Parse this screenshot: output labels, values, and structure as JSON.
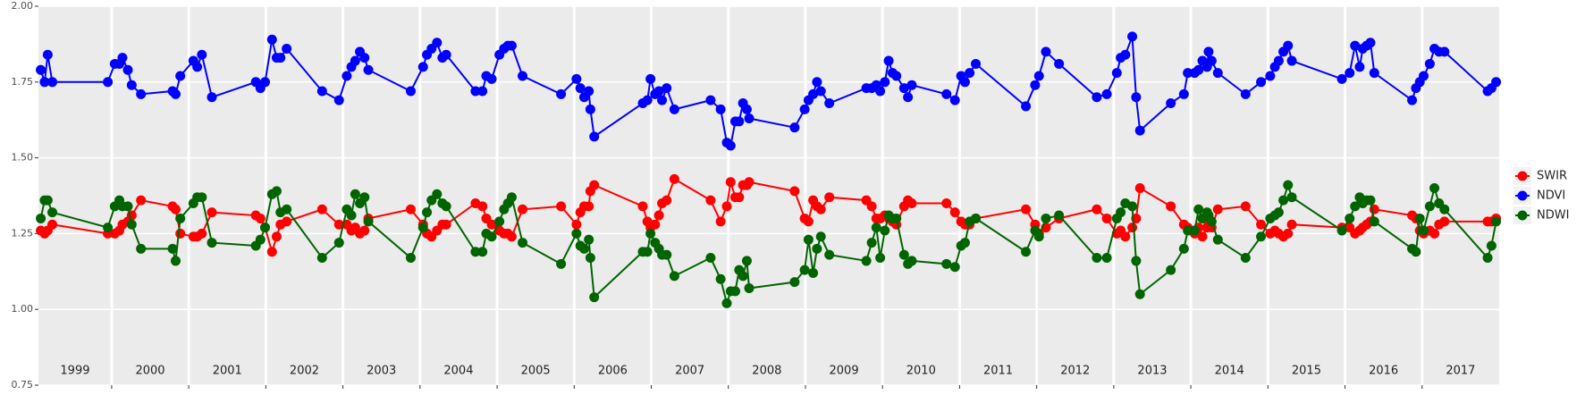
{
  "chart_data": {
    "type": "line",
    "x": [
      1999.08,
      1999.13,
      1999.17,
      1999.23,
      1999.95,
      2000.04,
      2000.1,
      2000.14,
      2000.21,
      2000.26,
      2000.38,
      2000.79,
      2000.83,
      2000.89,
      2001.06,
      2001.11,
      2001.17,
      2001.3,
      2001.87,
      2001.93,
      2001.99,
      2002.08,
      2002.14,
      2002.19,
      2002.27,
      2002.73,
      2002.95,
      2003.05,
      2003.11,
      2003.16,
      2003.22,
      2003.28,
      2003.33,
      2003.88,
      2004.04,
      2004.09,
      2004.15,
      2004.22,
      2004.29,
      2004.34,
      2004.72,
      2004.81,
      2004.86,
      2004.93,
      2005.03,
      2005.09,
      2005.14,
      2005.19,
      2005.33,
      2005.83,
      2006.03,
      2006.08,
      2006.13,
      2006.19,
      2006.21,
      2006.26,
      2006.89,
      2006.95,
      2006.99,
      2007.05,
      2007.1,
      2007.14,
      2007.2,
      2007.3,
      2007.77,
      2007.9,
      2007.98,
      2008.03,
      2008.09,
      2008.14,
      2008.19,
      2008.24,
      2008.27,
      2008.86,
      2008.99,
      2009.04,
      2009.1,
      2009.15,
      2009.2,
      2009.31,
      2009.79,
      2009.86,
      2009.92,
      2009.97,
      2010.03,
      2010.08,
      2010.13,
      2010.18,
      2010.28,
      2010.33,
      2010.38,
      2010.83,
      2010.94,
      2011.02,
      2011.07,
      2011.13,
      2011.21,
      2011.86,
      2011.98,
      2012.03,
      2012.12,
      2012.29,
      2012.78,
      2012.91,
      2013.04,
      2013.09,
      2013.15,
      2013.24,
      2013.29,
      2013.34,
      2013.74,
      2013.91,
      2013.96,
      2014.05,
      2014.1,
      2014.15,
      2014.21,
      2014.23,
      2014.27,
      2014.35,
      2014.71,
      2014.91,
      2015.03,
      2015.09,
      2015.14,
      2015.2,
      2015.26,
      2015.31,
      2015.96,
      2016.06,
      2016.13,
      2016.19,
      2016.23,
      2016.28,
      2016.33,
      2016.38,
      2016.87,
      2016.92,
      2016.97,
      2017.02,
      2017.1,
      2017.16,
      2017.22,
      2017.29,
      2017.85,
      2017.9,
      2017.96
    ],
    "series": [
      {
        "name": "SWIR",
        "color": "#ff0000",
        "values": [
          1.26,
          1.25,
          1.26,
          1.28,
          1.25,
          1.25,
          1.26,
          1.28,
          1.29,
          1.31,
          1.36,
          1.34,
          1.33,
          1.25,
          1.24,
          1.24,
          1.25,
          1.32,
          1.31,
          1.3,
          1.27,
          1.19,
          1.24,
          1.28,
          1.29,
          1.33,
          1.28,
          1.28,
          1.26,
          1.27,
          1.25,
          1.26,
          1.3,
          1.33,
          1.28,
          1.25,
          1.24,
          1.26,
          1.28,
          1.28,
          1.35,
          1.34,
          1.3,
          1.28,
          1.26,
          1.25,
          1.25,
          1.24,
          1.33,
          1.34,
          1.28,
          1.32,
          1.34,
          1.34,
          1.39,
          1.41,
          1.34,
          1.29,
          1.27,
          1.28,
          1.31,
          1.35,
          1.36,
          1.43,
          1.36,
          1.29,
          1.34,
          1.42,
          1.37,
          1.37,
          1.41,
          1.41,
          1.42,
          1.39,
          1.3,
          1.29,
          1.36,
          1.34,
          1.33,
          1.37,
          1.36,
          1.34,
          1.3,
          1.3,
          1.31,
          1.3,
          1.29,
          1.28,
          1.34,
          1.36,
          1.35,
          1.35,
          1.32,
          1.29,
          1.28,
          1.28,
          1.3,
          1.33,
          1.28,
          1.25,
          1.27,
          1.3,
          1.33,
          1.3,
          1.25,
          1.26,
          1.24,
          1.27,
          1.3,
          1.4,
          1.34,
          1.28,
          1.27,
          1.25,
          1.27,
          1.24,
          1.27,
          1.28,
          1.27,
          1.33,
          1.34,
          1.28,
          1.25,
          1.26,
          1.25,
          1.24,
          1.25,
          1.28,
          1.27,
          1.27,
          1.25,
          1.26,
          1.27,
          1.28,
          1.29,
          1.33,
          1.31,
          1.3,
          1.26,
          1.25,
          1.26,
          1.25,
          1.28,
          1.29,
          1.29,
          1.29,
          1.3
        ]
      },
      {
        "name": "NDVI",
        "color": "#0000ff",
        "values": [
          1.79,
          1.75,
          1.84,
          1.75,
          1.75,
          1.81,
          1.81,
          1.83,
          1.79,
          1.74,
          1.71,
          1.72,
          1.71,
          1.77,
          1.82,
          1.8,
          1.84,
          1.7,
          1.75,
          1.73,
          1.75,
          1.89,
          1.83,
          1.83,
          1.86,
          1.72,
          1.69,
          1.77,
          1.8,
          1.82,
          1.85,
          1.83,
          1.79,
          1.72,
          1.8,
          1.84,
          1.86,
          1.88,
          1.83,
          1.84,
          1.72,
          1.72,
          1.77,
          1.76,
          1.84,
          1.86,
          1.87,
          1.87,
          1.77,
          1.71,
          1.76,
          1.73,
          1.7,
          1.72,
          1.66,
          1.57,
          1.68,
          1.69,
          1.76,
          1.71,
          1.72,
          1.69,
          1.73,
          1.66,
          1.69,
          1.66,
          1.55,
          1.54,
          1.62,
          1.62,
          1.68,
          1.66,
          1.63,
          1.6,
          1.66,
          1.69,
          1.71,
          1.75,
          1.72,
          1.68,
          1.73,
          1.73,
          1.74,
          1.72,
          1.75,
          1.82,
          1.78,
          1.77,
          1.73,
          1.7,
          1.74,
          1.71,
          1.69,
          1.77,
          1.75,
          1.78,
          1.81,
          1.67,
          1.74,
          1.77,
          1.85,
          1.81,
          1.7,
          1.71,
          1.78,
          1.83,
          1.84,
          1.9,
          1.7,
          1.59,
          1.68,
          1.71,
          1.78,
          1.78,
          1.79,
          1.82,
          1.8,
          1.85,
          1.82,
          1.78,
          1.71,
          1.75,
          1.77,
          1.8,
          1.82,
          1.85,
          1.87,
          1.82,
          1.76,
          1.78,
          1.87,
          1.8,
          1.86,
          1.87,
          1.88,
          1.78,
          1.69,
          1.73,
          1.75,
          1.77,
          1.81,
          1.86,
          1.85,
          1.85,
          1.72,
          1.73,
          1.75
        ]
      },
      {
        "name": "NDWI",
        "color": "#006400",
        "values": [
          1.3,
          1.36,
          1.36,
          1.32,
          1.27,
          1.34,
          1.36,
          1.34,
          1.34,
          1.28,
          1.2,
          1.2,
          1.16,
          1.3,
          1.35,
          1.37,
          1.37,
          1.22,
          1.21,
          1.23,
          1.27,
          1.38,
          1.39,
          1.32,
          1.33,
          1.17,
          1.22,
          1.33,
          1.31,
          1.38,
          1.35,
          1.37,
          1.29,
          1.17,
          1.27,
          1.32,
          1.36,
          1.38,
          1.35,
          1.34,
          1.19,
          1.19,
          1.25,
          1.24,
          1.29,
          1.33,
          1.35,
          1.37,
          1.22,
          1.15,
          1.25,
          1.21,
          1.2,
          1.23,
          1.17,
          1.04,
          1.19,
          1.19,
          1.25,
          1.22,
          1.2,
          1.18,
          1.18,
          1.11,
          1.17,
          1.1,
          1.02,
          1.06,
          1.06,
          1.13,
          1.11,
          1.16,
          1.07,
          1.09,
          1.13,
          1.23,
          1.12,
          1.2,
          1.24,
          1.18,
          1.16,
          1.22,
          1.27,
          1.17,
          1.26,
          1.31,
          1.3,
          1.3,
          1.18,
          1.15,
          1.16,
          1.15,
          1.14,
          1.21,
          1.22,
          1.29,
          1.3,
          1.19,
          1.26,
          1.24,
          1.3,
          1.31,
          1.17,
          1.17,
          1.3,
          1.32,
          1.35,
          1.34,
          1.16,
          1.05,
          1.13,
          1.2,
          1.26,
          1.26,
          1.33,
          1.3,
          1.32,
          1.31,
          1.29,
          1.23,
          1.17,
          1.24,
          1.3,
          1.31,
          1.32,
          1.36,
          1.41,
          1.37,
          1.26,
          1.3,
          1.34,
          1.37,
          1.35,
          1.36,
          1.36,
          1.29,
          1.2,
          1.19,
          1.3,
          1.26,
          1.34,
          1.4,
          1.35,
          1.33,
          1.17,
          1.21,
          1.29
        ]
      }
    ],
    "xlim": [
      1999.05,
      2018.0
    ],
    "xticks": [
      1999,
      2000,
      2001,
      2002,
      2003,
      2004,
      2005,
      2006,
      2007,
      2008,
      2009,
      2010,
      2011,
      2012,
      2013,
      2014,
      2015,
      2016,
      2017
    ],
    "ylim": [
      0.75,
      2.0
    ],
    "yticks": [
      0.75,
      {
        "value": 1.0,
        "label": "1.00"
      },
      1.25,
      {
        "value": 1.5,
        "label": "1.50"
      },
      1.75,
      {
        "value": 2.0,
        "label": "2.00"
      }
    ],
    "grid": true,
    "legend": "right"
  }
}
